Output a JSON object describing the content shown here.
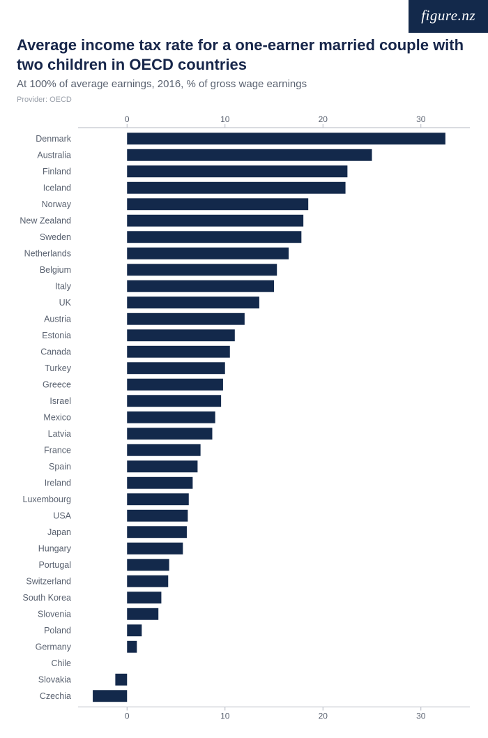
{
  "brand": {
    "logo_text": "figure.nz"
  },
  "header": {
    "title": "Average income tax rate for a one-earner married couple with two children in OECD countries",
    "subtitle": "At 100% of average earnings, 2016, % of gross wage earnings",
    "provider": "Provider: OECD"
  },
  "chart": {
    "type": "bar-horizontal",
    "xlim": [
      -5,
      35
    ],
    "xticks": [
      0,
      10,
      20,
      30
    ],
    "bar_color": "#13294b",
    "background_color": "#ffffff",
    "axis_line_color": "#b5b9c2",
    "label_color": "#5a6270",
    "title_color": "#17264a",
    "title_fontsize": 22,
    "subtitle_fontsize": 15,
    "label_fontsize": 12.5,
    "tick_fontsize": 12,
    "bar_height_ratio": 0.72,
    "categories": [
      "Denmark",
      "Australia",
      "Finland",
      "Iceland",
      "Norway",
      "New Zealand",
      "Sweden",
      "Netherlands",
      "Belgium",
      "Italy",
      "UK",
      "Austria",
      "Estonia",
      "Canada",
      "Turkey",
      "Greece",
      "Israel",
      "Mexico",
      "Latvia",
      "France",
      "Spain",
      "Ireland",
      "Luxembourg",
      "USA",
      "Japan",
      "Hungary",
      "Portugal",
      "Switzerland",
      "South Korea",
      "Slovenia",
      "Poland",
      "Germany",
      "Chile",
      "Slovakia",
      "Czechia"
    ],
    "values": [
      32.5,
      25.0,
      22.5,
      22.3,
      18.5,
      18.0,
      17.8,
      16.5,
      15.3,
      15.0,
      13.5,
      12.0,
      11.0,
      10.5,
      10.0,
      9.8,
      9.6,
      9.0,
      8.7,
      7.5,
      7.2,
      6.7,
      6.3,
      6.2,
      6.1,
      5.7,
      4.3,
      4.2,
      3.5,
      3.2,
      1.5,
      1.0,
      0.0,
      -1.2,
      -3.5
    ]
  }
}
